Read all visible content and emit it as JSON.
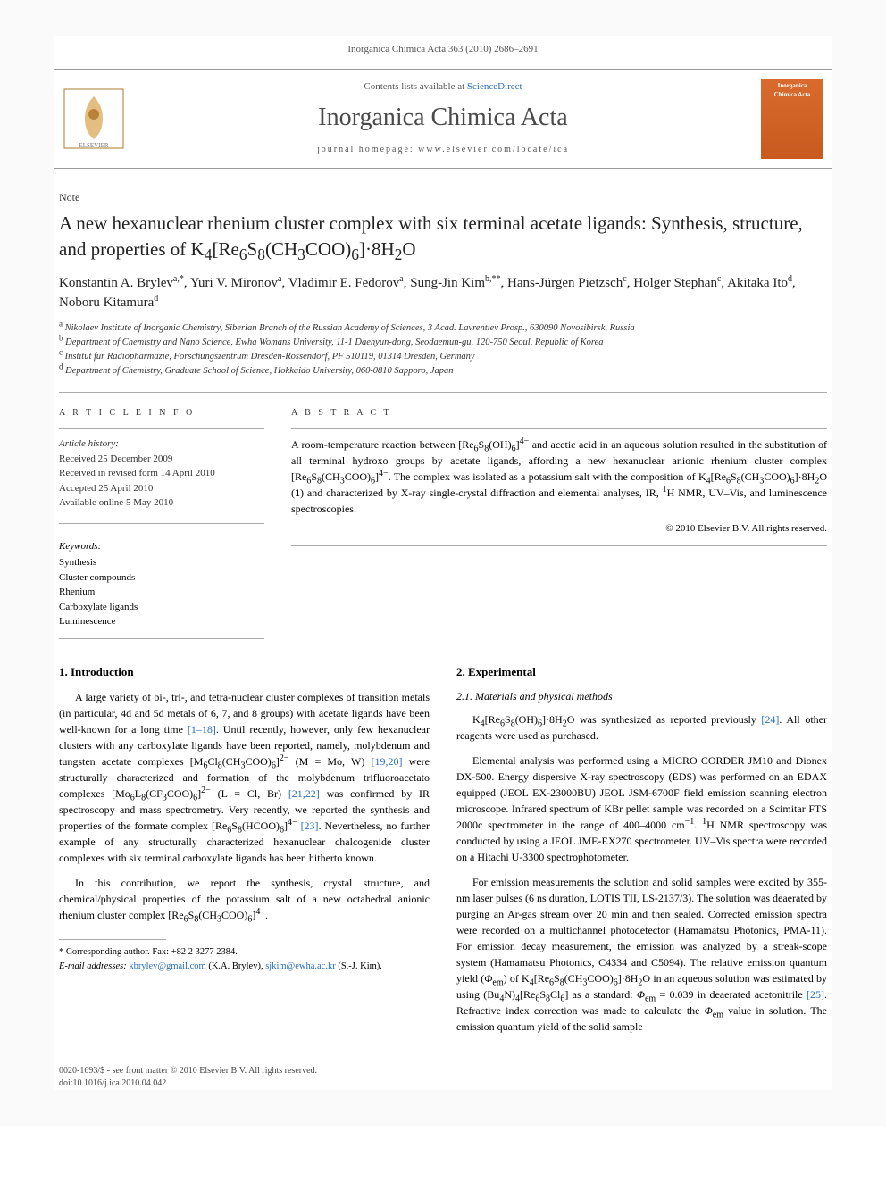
{
  "citation": "Inorganica Chimica Acta 363 (2010) 2686–2691",
  "header": {
    "contents_prefix": "Contents lists available at ",
    "contents_link": "ScienceDirect",
    "journal": "Inorganica Chimica Acta",
    "homepage_label": "journal homepage: www.elsevier.com/locate/ica",
    "cover_line1": "Inorganica",
    "cover_line2": "Chimica Acta"
  },
  "note_label": "Note",
  "title_html": "A new hexanuclear rhenium cluster complex with six terminal acetate ligands: Synthesis, structure, and properties of K<sub>4</sub>[Re<sub>6</sub>S<sub>8</sub>(CH<sub>3</sub>COO)<sub>6</sub>]·8H<sub>2</sub>O",
  "authors_html": "Konstantin A. Brylev<sup>a,*</sup>, Yuri V. Mironov<sup>a</sup>, Vladimir E. Fedorov<sup>a</sup>, Sung-Jin Kim<sup>b,**</sup>, Hans-Jürgen Pietzsch<sup>c</sup>, Holger Stephan<sup>c</sup>, Akitaka Ito<sup>d</sup>, Noboru Kitamura<sup>d</sup>",
  "affils": [
    "<sup>a</sup> Nikolaev Institute of Inorganic Chemistry, Siberian Branch of the Russian Academy of Sciences, 3 Acad. Lavrentiev Prosp., 630090 Novosibirsk, Russia",
    "<sup>b</sup> Department of Chemistry and Nano Science, Ewha Womans University, 11-1 Daehyun-dong, Seodaemun-gu, 120-750 Seoul, Republic of Korea",
    "<sup>c</sup> Institut für Radiopharmazie, Forschungszentrum Dresden-Rossendorf, PF 510119, 01314 Dresden, Germany",
    "<sup>d</sup> Department of Chemistry, Graduate School of Science, Hokkaido University, 060-0810 Sapporo, Japan"
  ],
  "info": {
    "left_head": "A R T I C L E   I N F O",
    "right_head": "A B S T R A C T",
    "history_label": "Article history:",
    "history": [
      "Received 25 December 2009",
      "Received in revised form 14 April 2010",
      "Accepted 25 April 2010",
      "Available online 5 May 2010"
    ],
    "keywords_label": "Keywords:",
    "keywords": [
      "Synthesis",
      "Cluster compounds",
      "Rhenium",
      "Carboxylate ligands",
      "Luminescence"
    ],
    "abstract_html": "A room-temperature reaction between [Re<sub>6</sub>S<sub>8</sub>(OH)<sub>6</sub>]<sup>4−</sup> and acetic acid in an aqueous solution resulted in the substitution of all terminal hydroxo groups by acetate ligands, affording a new hexanuclear anionic rhenium cluster complex [Re<sub>6</sub>S<sub>8</sub>(CH<sub>3</sub>COO)<sub>6</sub>]<sup>4−</sup>. The complex was isolated as a potassium salt with the composition of K<sub>4</sub>[Re<sub>6</sub>S<sub>8</sub>(CH<sub>3</sub>COO)<sub>6</sub>]·8H<sub>2</sub>O (<b>1</b>) and characterized by X-ray single-crystal diffraction and elemental analyses, IR, <sup>1</sup>H NMR, UV–Vis, and luminescence spectroscopies.",
    "copyright": "© 2010 Elsevier B.V. All rights reserved."
  },
  "sections": {
    "intro_head": "1. Introduction",
    "intro_p1_html": "A large variety of bi-, tri-, and tetra-nuclear cluster complexes of transition metals (in particular, 4d and 5d metals of 6, 7, and 8 groups) with acetate ligands have been well-known for a long time <span class=\"ref\">[1–18]</span>. Until recently, however, only few hexanuclear clusters with any carboxylate ligands have been reported, namely, molybdenum and tungsten acetate complexes [M<sub>6</sub>Cl<sub>8</sub>(CH<sub>3</sub>COO)<sub>6</sub>]<sup>2−</sup> (M = Mo, W) <span class=\"ref\">[19,20]</span> were structurally characterized and formation of the molybdenum trifluoroacetato complexes [Mo<sub>6</sub>L<sub>8</sub>(CF<sub>3</sub>COO)<sub>6</sub>]<sup>2−</sup> (L = Cl, Br) <span class=\"ref\">[21,22]</span> was confirmed by IR spectroscopy and mass spectrometry. Very recently, we reported the synthesis and properties of the formate complex [Re<sub>6</sub>S<sub>8</sub>(HCOO)<sub>6</sub>]<sup>4−</sup> <span class=\"ref\">[23]</span>. Nevertheless, no further example of any structurally characterized hexanuclear chalcogenide cluster complexes with six terminal carboxylate ligands has been hitherto known.",
    "intro_p2_html": "In this contribution, we report the synthesis, crystal structure, and chemical/physical properties of the potassium salt of a new octahedral anionic rhenium cluster complex [Re<sub>6</sub>S<sub>8</sub>(CH<sub>3</sub>COO)<sub>6</sub>]<sup>4−</sup>.",
    "exp_head": "2. Experimental",
    "exp_sub1": "2.1. Materials and physical methods",
    "exp_p1_html": "K<sub>4</sub>[Re<sub>6</sub>S<sub>8</sub>(OH)<sub>6</sub>]·8H<sub>2</sub>O was synthesized as reported previously <span class=\"ref\">[24]</span>. All other reagents were used as purchased.",
    "exp_p2_html": "Elemental analysis was performed using a MICRO CORDER JM10 and Dionex DX-500. Energy dispersive X-ray spectroscopy (EDS) was performed on an EDAX equipped (JEOL EX-23000BU) JEOL JSM-6700F field emission scanning electron microscope. Infrared spectrum of KBr pellet sample was recorded on a Scimitar FTS 2000c spectrometer in the range of 400–4000 cm<sup>−1</sup>. <sup>1</sup>H NMR spectroscopy was conducted by using a JEOL JME-EX270 spectrometer. UV–Vis spectra were recorded on a Hitachi U-3300 spectrophotometer.",
    "exp_p3_html": "For emission measurements the solution and solid samples were excited by 355-nm laser pulses (6 ns duration, LOTIS TII, LS-2137/3). The solution was deaerated by purging an Ar-gas stream over 20 min and then sealed. Corrected emission spectra were recorded on a multichannel photodetector (Hamamatsu Photonics, PMA-11). For emission decay measurement, the emission was analyzed by a streak-scope system (Hamamatsu Photonics, C4334 and C5094). The relative emission quantum yield (<i>Φ</i><sub>em</sub>) of K<sub>4</sub>[Re<sub>6</sub>S<sub>8</sub>(CH<sub>3</sub>COO)<sub>6</sub>]·8H<sub>2</sub>O in an aqueous solution was estimated by using (Bu<sub>4</sub>N)<sub>4</sub>[Re<sub>6</sub>S<sub>8</sub>Cl<sub>6</sub>] as a standard: <i>Φ</i><sub>em</sub> = 0.039 in deaerated acetonitrile <span class=\"ref\">[25]</span>. Refractive index correction was made to calculate the <i>Φ</i><sub>em</sub> value in solution. The emission quantum yield of the solid sample"
  },
  "footnote": {
    "corr": "* Corresponding author. Fax: +82 2 3277 2384.",
    "email_label": "E-mail addresses:",
    "email1": "kbrylev@gmail.com",
    "email1_who": "(K.A. Brylev),",
    "email2": "sjkim@ewha.ac.kr",
    "email2_who": "(S.-J. Kim)."
  },
  "footer": {
    "left1": "0020-1693/$ - see front matter © 2010 Elsevier B.V. All rights reserved.",
    "left2": "doi:10.1016/j.ica.2010.04.042"
  },
  "colors": {
    "link": "#2a6fb5",
    "cover_bg": "#d96b2e",
    "rule": "#aaaaaa",
    "text": "#000000"
  }
}
